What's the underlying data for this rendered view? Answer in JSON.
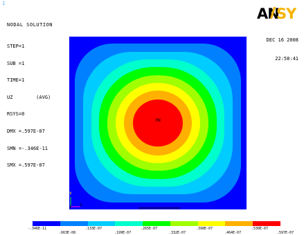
{
  "window_number": "1",
  "info": {
    "title": "NODAL SOLUTION",
    "lines": [
      "STEP=1",
      "SUB =1",
      "TIME=1",
      "UZ        (AVG)",
      "RSYS=0",
      "DMX =.597E-07",
      "SMN =-.346E-11",
      "SMX =.597E-07"
    ]
  },
  "logo_text": "ANSYS",
  "date": "DEC 16 2008",
  "time": "22:58:41",
  "mx_label": "MX",
  "axis": {
    "y": "Y",
    "z": "Z",
    "x": "X"
  },
  "legend": {
    "colors": [
      "#0000ff",
      "#0080ff",
      "#00ccff",
      "#00ffcc",
      "#00ff00",
      "#a0ff00",
      "#ffff00",
      "#ffb000",
      "#ff0000"
    ],
    "top_labels": [
      "-.346E-11",
      ".133E-07",
      ".265E-07",
      ".398E-07",
      ".530E-07"
    ],
    "bottom_labels": [
      ".663E-08",
      ".199E-07",
      ".332E-07",
      ".464E-07",
      ".597E-07"
    ]
  },
  "contour_colors": [
    "#0000ff",
    "#0080ff",
    "#00ccff",
    "#00ffcc",
    "#00ff00",
    "#a0ff00",
    "#ffff00",
    "#ffb000",
    "#ff0000"
  ]
}
